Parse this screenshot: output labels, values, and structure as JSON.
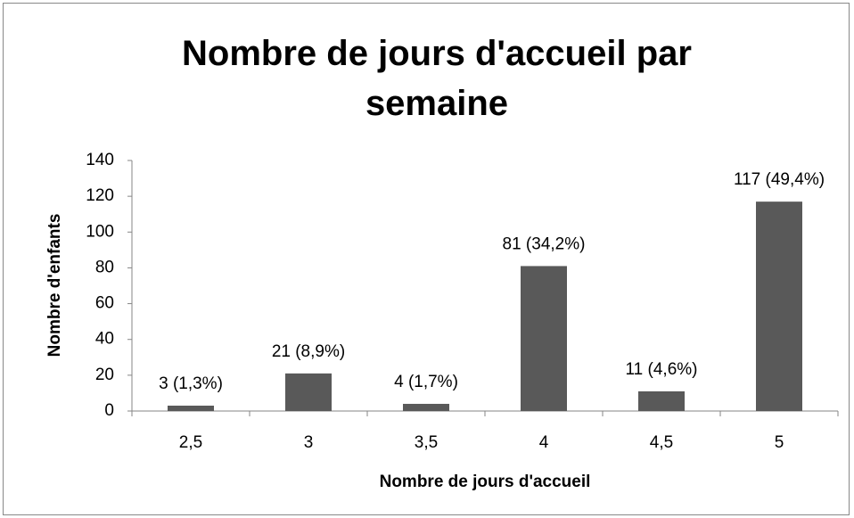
{
  "chart_data": {
    "type": "bar",
    "title": "Nombre de jours d'accueil par semaine",
    "x_label": "Nombre de jours d'accueil",
    "y_label": "Nombre d'enfants",
    "categories": [
      "2,5",
      "3",
      "3,5",
      "4",
      "4,5",
      "5"
    ],
    "values": [
      3,
      21,
      4,
      81,
      11,
      117
    ],
    "value_labels": [
      "3 (1,3%)",
      "21 (8,9%)",
      "4 (1,7%)",
      "81 (34,2%)",
      "11 (4,6%)",
      "117 (49,4%)"
    ],
    "color": "#595959",
    "ylim": [
      0,
      140
    ],
    "yticks": [
      0,
      20,
      40,
      60,
      80,
      100,
      120,
      140
    ],
    "grid": false
  }
}
